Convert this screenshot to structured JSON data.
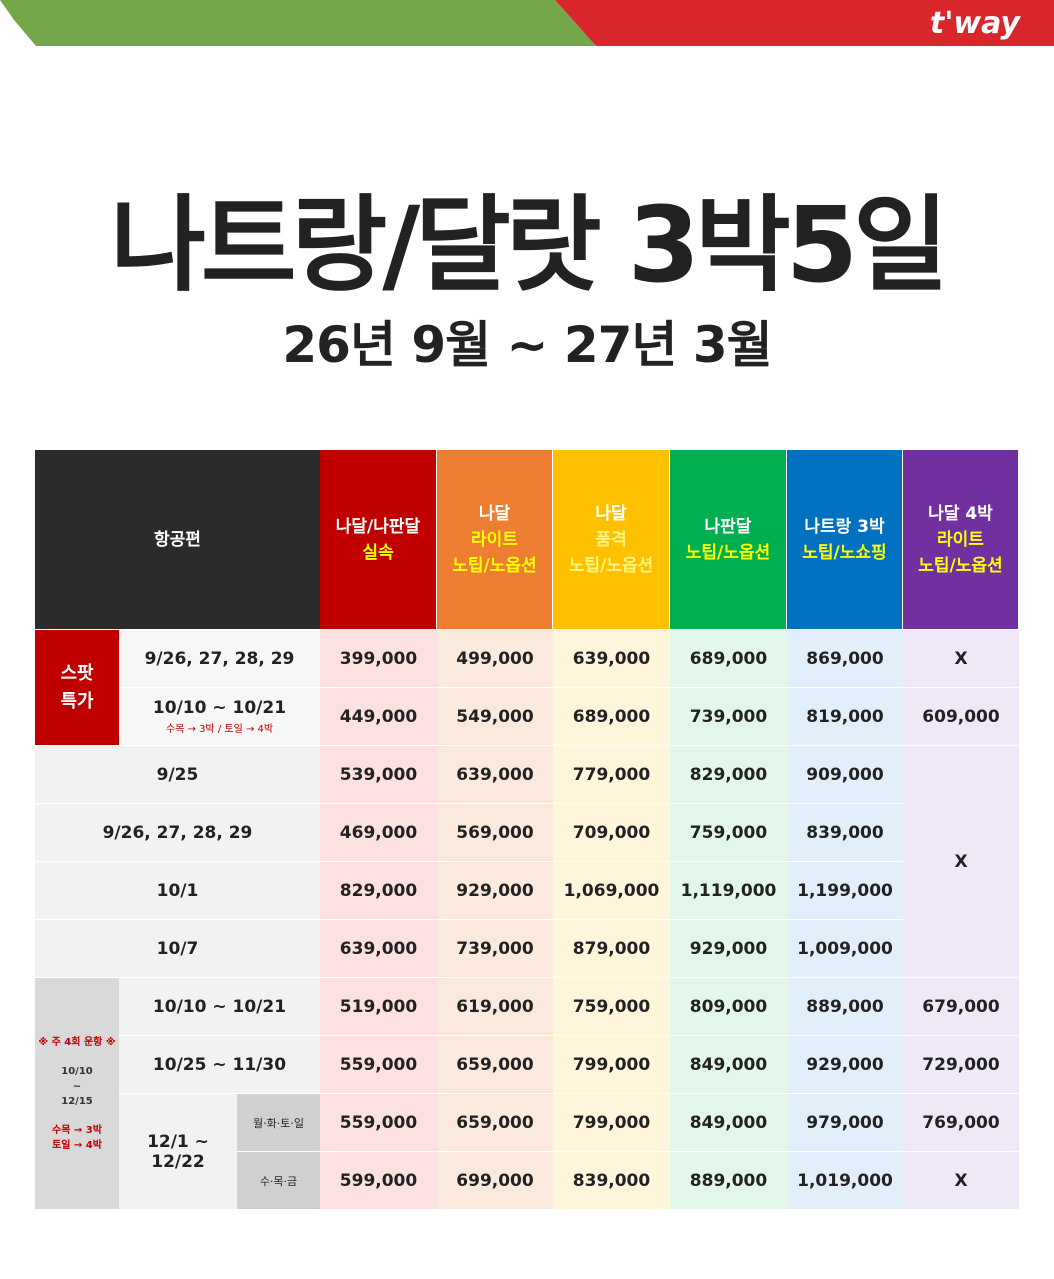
{
  "brand": "t'way",
  "title": "나트랑/달랏 3박5일",
  "subtitle": "26년 9월 ~ 27년 3월",
  "table": {
    "header": {
      "flight": "항공편",
      "products": [
        [
          "나달/나판달",
          "실속"
        ],
        [
          "나달",
          "라이트",
          "노팁/노옵션"
        ],
        [
          "나달",
          "품격",
          "노팁/노옵션"
        ],
        [
          "나판달",
          "노팁/노옵션"
        ],
        [
          "나트랑 3박",
          "노팁/노쇼핑"
        ],
        [
          "나달 4박",
          "라이트",
          "노팁/노옵션"
        ]
      ]
    },
    "sections": [
      {
        "label": [
          "스팟",
          "특가"
        ],
        "rows": [
          {
            "dates": "9/26, 27, 28, 29",
            "prices": [
              "399,000",
              "499,000",
              "639,000",
              "689,000",
              "869,000",
              "X"
            ]
          },
          {
            "dates": "10/10 ~ 10/21",
            "note": "수목 → 3박 / 토일 → 4박",
            "prices": [
              "449,000",
              "549,000",
              "689,000",
              "739,000",
              "819,000",
              "609,000"
            ]
          }
        ]
      },
      {
        "rows": [
          {
            "dates": "9/25",
            "prices": [
              "539,000",
              "639,000",
              "779,000",
              "829,000",
              "909,000"
            ]
          },
          {
            "dates": "9/26, 27, 28, 29",
            "prices": [
              "469,000",
              "569,000",
              "709,000",
              "759,000",
              "839,000"
            ]
          },
          {
            "dates": "10/1",
            "prices": [
              "829,000",
              "929,000",
              "1,069,000",
              "1,119,000",
              "1,199,000"
            ]
          },
          {
            "dates": "10/7",
            "prices": [
              "639,000",
              "739,000",
              "879,000",
              "929,000",
              "1,009,000"
            ]
          }
        ],
        "merged_last": "X"
      },
      {
        "label": [
          "※ 주 4회 운항 ※",
          "10/10",
          "~",
          "12/15",
          "수목 → 3박",
          "토일 → 4박"
        ],
        "rows": [
          {
            "dates": "10/10 ~ 10/21",
            "prices": [
              "519,000",
              "619,000",
              "759,000",
              "809,000",
              "889,000",
              "679,000"
            ]
          },
          {
            "dates": "10/25 ~ 11/30",
            "prices": [
              "559,000",
              "659,000",
              "799,000",
              "849,000",
              "929,000",
              "729,000"
            ]
          },
          {
            "dates": "12/1 ~ 12/22",
            "subrows": [
              {
                "days": "월·화·토·일",
                "prices": [
                  "559,000",
                  "659,000",
                  "799,000",
                  "849,000",
                  "979,000",
                  "769,000"
                ]
              },
              {
                "days": "수·목·금",
                "prices": [
                  "599,000",
                  "699,000",
                  "839,000",
                  "889,000",
                  "1,019,000",
                  "X"
                ]
              }
            ]
          }
        ]
      }
    ]
  }
}
